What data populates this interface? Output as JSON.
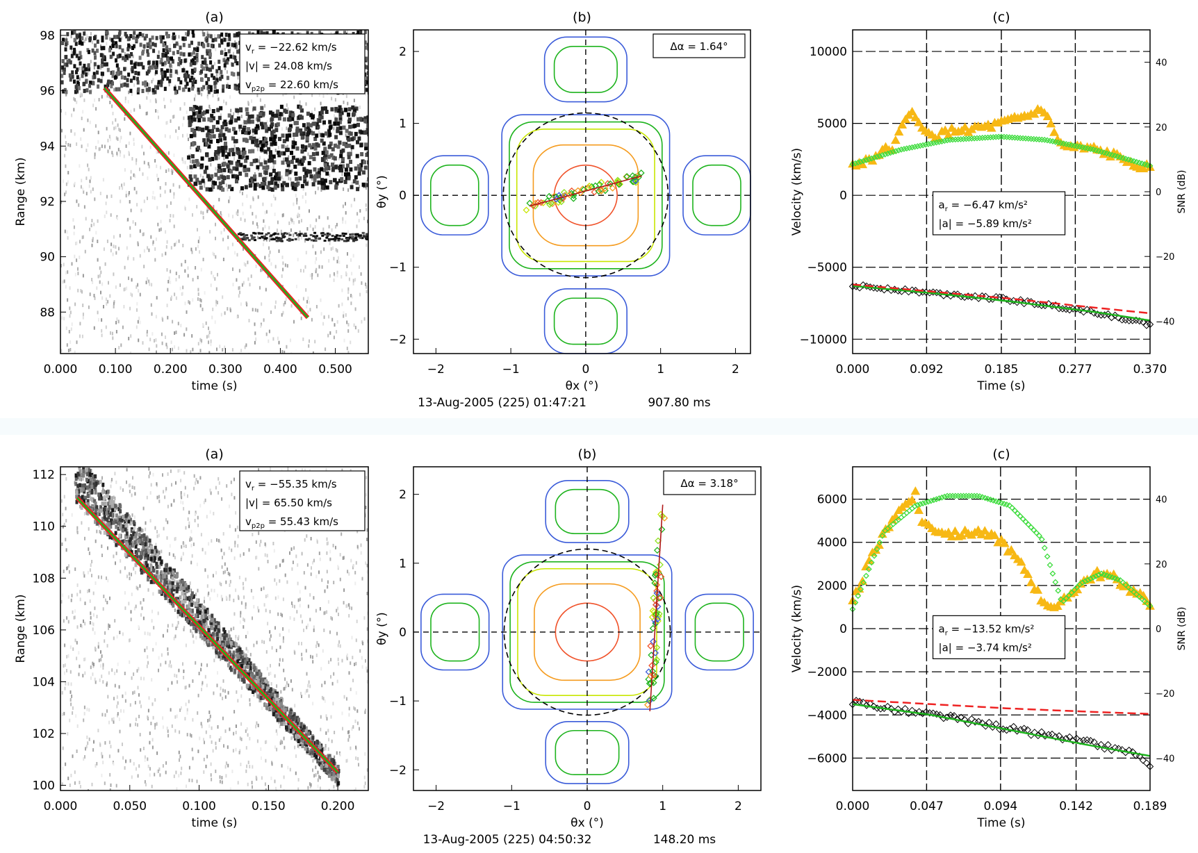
{
  "colors": {
    "blue": "#3a5bd9",
    "green": "#1db31d",
    "lightgreen": "#8ee01f",
    "yellowgreen": "#c8e600",
    "orange": "#f59b1e",
    "redorange": "#f0522a",
    "fit_red": "#ee2222",
    "snr_gold": "#f7b814",
    "snr_green": "#3ddc3d",
    "black": "#000000"
  },
  "figures": [
    {
      "footer": {
        "date": "13-Aug-2005 (225) 01:47:21",
        "ms": "907.80 ms"
      },
      "rti": {
        "label": "(a)",
        "xlabel": "time (s)",
        "ylabel": "Range (km)",
        "xticks": [
          "0.000",
          "0.100",
          "0.200",
          "0.300",
          "0.400",
          "0.500"
        ],
        "yticks": [
          "88",
          "90",
          "92",
          "94",
          "96",
          "98"
        ],
        "legend": [
          {
            "sym": "v",
            "sub": "r",
            "eq": " = −22.62 km/s"
          },
          {
            "sym": "|v|",
            "sub": "",
            "eq": " = 24.08 km/s"
          },
          {
            "sym": "v",
            "sub": "p2p",
            "eq": " = 22.60 km/s"
          }
        ]
      },
      "beam": {
        "label": "(b)",
        "xlabel": "θx (°)",
        "ylabel": "θy (°)",
        "xticks": [
          "−2",
          "−1",
          "0",
          "1",
          "2"
        ],
        "yticks": [
          "−2",
          "−1",
          "0",
          "1",
          "2"
        ],
        "box": "Δα = 1.64°"
      },
      "vel": {
        "label": "(c)",
        "xlabel": "Time (s)",
        "ylabel": "Velocity (km/s)",
        "y2label": "SNR (dB)",
        "xticks": [
          "0.000",
          "0.092",
          "0.185",
          "0.277",
          "0.370"
        ],
        "yticks": [
          "−10000",
          "−5000",
          "0",
          "5000",
          "10000"
        ],
        "y2ticks": [
          "−40",
          "−20",
          "0",
          "20",
          "40"
        ],
        "box": [
          {
            "sym": "a",
            "sub": "r",
            "eq": " = −6.47 km/s²"
          },
          {
            "sym": "|a|",
            "sub": "",
            "eq": " = −5.89 km/s²"
          }
        ]
      }
    },
    {
      "footer": {
        "date": "13-Aug-2005 (225) 04:50:32",
        "ms": "148.20 ms"
      },
      "rti": {
        "label": "(a)",
        "xlabel": "time (s)",
        "ylabel": "Range (km)",
        "xticks": [
          "0.000",
          "0.050",
          "0.100",
          "0.150",
          "0.200"
        ],
        "yticks": [
          "100",
          "102",
          "104",
          "106",
          "108",
          "110",
          "112"
        ],
        "legend": [
          {
            "sym": "v",
            "sub": "r",
            "eq": " = −55.35 km/s"
          },
          {
            "sym": "|v|",
            "sub": "",
            "eq": " = 65.50 km/s"
          },
          {
            "sym": "v",
            "sub": "p2p",
            "eq": " = 55.43 km/s"
          }
        ]
      },
      "beam": {
        "label": "(b)",
        "xlabel": "θx (°)",
        "ylabel": "θy (°)",
        "xticks": [
          "−2",
          "−1",
          "0",
          "1",
          "2"
        ],
        "yticks": [
          "−2",
          "−1",
          "0",
          "1",
          "2"
        ],
        "box": "Δα = 3.18°"
      },
      "vel": {
        "label": "(c)",
        "xlabel": "Time (s)",
        "ylabel": "Velocity (km/s)",
        "y2label": "SNR (dB)",
        "xticks": [
          "0.000",
          "0.047",
          "0.094",
          "0.142",
          "0.189"
        ],
        "yticks": [
          "−6000",
          "−4000",
          "−2000",
          "0",
          "2000",
          "4000",
          "6000"
        ],
        "y2ticks": [
          "−40",
          "−20",
          "0",
          "20",
          "40"
        ],
        "box": [
          {
            "sym": "a",
            "sub": "r",
            "eq": " = −13.52 km/s²"
          },
          {
            "sym": "|a|",
            "sub": "",
            "eq": " = −3.74 km/s²"
          }
        ]
      }
    }
  ],
  "chart_data": [
    {
      "type": "scatter",
      "title": "(a)",
      "xlabel": "time (s)",
      "ylabel": "Range (km)",
      "xlim": [
        0,
        0.56
      ],
      "ylim": [
        86.5,
        98.2
      ],
      "series": [
        {
          "x": [
            0.08,
            0.45
          ],
          "y": [
            96.1,
            87.8
          ]
        }
      ],
      "noise": {
        "seed": 11,
        "dense_band": {
          "x": [
            0,
            0.56
          ],
          "y": [
            96.0,
            98.2
          ]
        },
        "blob": {
          "x": [
            0.23,
            0.56
          ],
          "y": [
            92.5,
            95.5
          ]
        },
        "trail": {
          "x": [
            0.32,
            0.56
          ],
          "y": [
            90.6,
            90.9
          ]
        }
      }
    },
    {
      "type": "scatter",
      "title": "(b)",
      "xlabel": "θx (°)",
      "ylabel": "θy (°)",
      "xlim": [
        -2.3,
        2.2
      ],
      "ylim": [
        -2.2,
        2.3
      ],
      "track": {
        "from": [
          -0.75,
          -0.15
        ],
        "to": [
          0.75,
          0.27
        ],
        "spread": 0.06,
        "count": 70,
        "seed": 3
      }
    },
    {
      "type": "line",
      "title": "(c)",
      "xlabel": "Time (s)",
      "ylabel": "Velocity (km/s)",
      "xlim": [
        0,
        0.37
      ],
      "ylim": [
        -11000,
        11500
      ],
      "y2lim": [
        -50,
        50
      ],
      "vlines": [
        0.092,
        0.185,
        0.277
      ],
      "series": [
        {
          "type": "snr_gold",
          "axis": "y2",
          "x": [
            0,
            0.02,
            0.05,
            0.075,
            0.085,
            0.1,
            0.13,
            0.17,
            0.2,
            0.225,
            0.235,
            0.26,
            0.3,
            0.34,
            0.37
          ],
          "y": [
            8,
            10,
            14,
            26,
            19,
            17,
            19,
            20,
            22,
            24,
            26,
            14,
            13,
            10,
            7
          ]
        },
        {
          "type": "snr_green",
          "axis": "y2",
          "x": [
            0,
            0.06,
            0.12,
            0.185,
            0.24,
            0.3,
            0.37
          ],
          "y": [
            8.5,
            13,
            16,
            17,
            16,
            13,
            8
          ]
        },
        {
          "type": "vel_black",
          "axis": "y",
          "x": [
            0,
            0.05,
            0.1,
            0.15,
            0.2,
            0.25,
            0.3,
            0.34,
            0.37
          ],
          "y": [
            -6300,
            -6500,
            -6800,
            -7000,
            -7300,
            -7700,
            -8100,
            -8600,
            -9000
          ]
        },
        {
          "type": "vel_green",
          "axis": "y",
          "x": [
            0,
            0.1,
            0.2,
            0.3,
            0.37
          ],
          "y": [
            -6300,
            -6800,
            -7400,
            -8100,
            -8700
          ]
        },
        {
          "type": "vel_red",
          "axis": "y",
          "x": [
            0,
            0.1,
            0.2,
            0.3,
            0.37
          ],
          "y": [
            -6200,
            -6700,
            -7200,
            -7800,
            -8200
          ]
        }
      ]
    },
    {
      "type": "scatter",
      "title": "(a)",
      "xlabel": "time (s)",
      "ylabel": "Range (km)",
      "xlim": [
        0,
        0.222
      ],
      "ylim": [
        99.8,
        112.3
      ],
      "series": [
        {
          "x": [
            0.012,
            0.2
          ],
          "y": [
            111.1,
            100.5
          ]
        }
      ],
      "noise": {
        "seed": 29,
        "streak": {
          "x": [
            0.01,
            0.2
          ],
          "y": [
            112,
            100.4
          ],
          "width": 1.9
        }
      }
    },
    {
      "type": "scatter",
      "title": "(b)",
      "xlabel": "θx (°)",
      "ylabel": "θy (°)",
      "xlim": [
        -2.3,
        2.3
      ],
      "ylim": [
        -2.3,
        2.4
      ],
      "track": {
        "from": [
          0.83,
          -1.15
        ],
        "to": [
          1.0,
          1.85
        ],
        "spread": 0.05,
        "count": 60,
        "seed": 7
      }
    },
    {
      "type": "line",
      "title": "(c)",
      "xlabel": "Time (s)",
      "ylabel": "Velocity (km/s)",
      "xlim": [
        0,
        0.189
      ],
      "ylim": [
        -7500,
        7500
      ],
      "y2lim": [
        -50,
        50
      ],
      "vlines": [
        0.047,
        0.094,
        0.142
      ],
      "series": [
        {
          "type": "snr_gold",
          "axis": "y2",
          "x": [
            0,
            0.01,
            0.025,
            0.04,
            0.043,
            0.05,
            0.065,
            0.08,
            0.095,
            0.11,
            0.12,
            0.13,
            0.135,
            0.145,
            0.155,
            0.165,
            0.18,
            0.189
          ],
          "y": [
            8,
            20,
            34,
            42,
            34,
            31,
            29,
            30,
            27,
            18,
            9,
            6,
            9,
            14,
            17,
            16,
            11,
            8
          ]
        },
        {
          "type": "snr_green",
          "axis": "y2",
          "x": [
            0,
            0.02,
            0.04,
            0.06,
            0.08,
            0.1,
            0.12,
            0.133,
            0.145,
            0.158,
            0.17,
            0.189
          ],
          "y": [
            6,
            30,
            38,
            41,
            41,
            38,
            28,
            8,
            14,
            17,
            15,
            7
          ]
        },
        {
          "type": "vel_black",
          "axis": "y",
          "x": [
            0,
            0.03,
            0.06,
            0.09,
            0.12,
            0.15,
            0.18,
            0.189
          ],
          "y": [
            -3400,
            -3800,
            -4100,
            -4500,
            -4900,
            -5300,
            -5800,
            -6500
          ]
        },
        {
          "type": "vel_green",
          "axis": "y",
          "x": [
            0,
            0.05,
            0.1,
            0.15,
            0.189
          ],
          "y": [
            -3500,
            -4000,
            -4700,
            -5400,
            -5900
          ]
        },
        {
          "type": "vel_red",
          "axis": "y",
          "x": [
            0,
            0.05,
            0.1,
            0.15,
            0.189
          ],
          "y": [
            -3300,
            -3500,
            -3700,
            -3850,
            -3950
          ]
        }
      ]
    }
  ]
}
